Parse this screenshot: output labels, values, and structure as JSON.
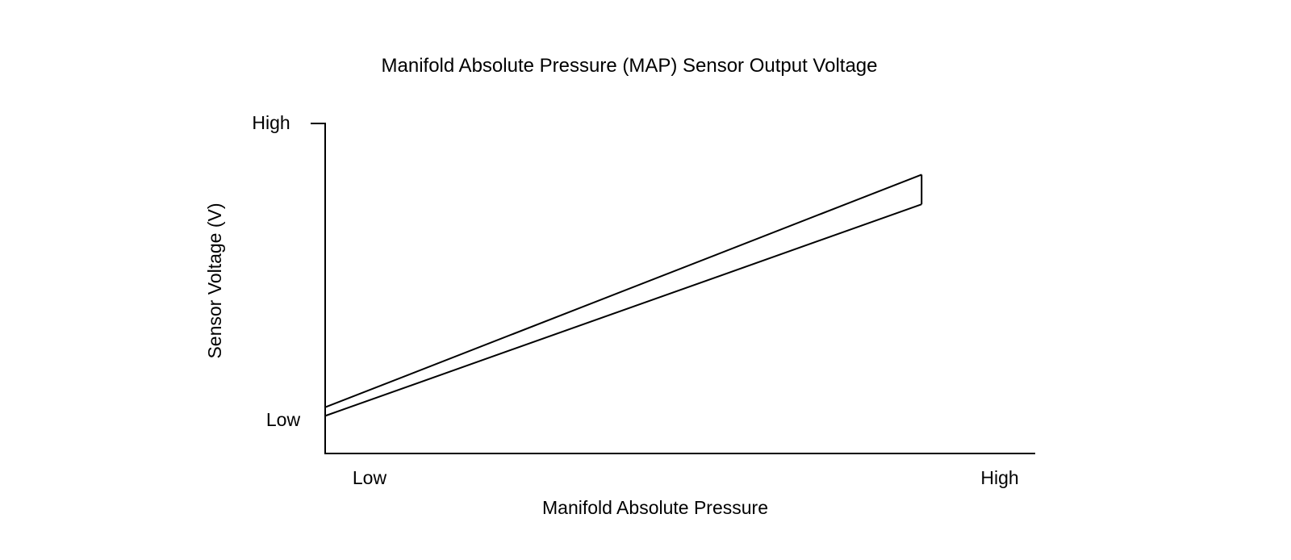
{
  "chart_data": {
    "type": "line",
    "title": "Manifold Absolute Pressure (MAP) Sensor Output Voltage",
    "xlabel": "Manifold Absolute Pressure",
    "ylabel": "Sensor Voltage (V)",
    "x_tick_labels": [
      "Low",
      "High"
    ],
    "y_tick_labels": [
      "High",
      "Low"
    ],
    "grid": false,
    "legend": "none",
    "xlim": [
      0,
      1
    ],
    "ylim": [
      0,
      1
    ],
    "series": [
      {
        "x": [
          0.0,
          0.84
        ],
        "y": [
          0.14,
          0.845
        ]
      },
      {
        "x": [
          0.0,
          0.84
        ],
        "y": [
          0.114,
          0.755
        ]
      }
    ],
    "band_end_x": 0.84,
    "colors": {
      "line": "#000000",
      "background": "#ffffff"
    }
  }
}
